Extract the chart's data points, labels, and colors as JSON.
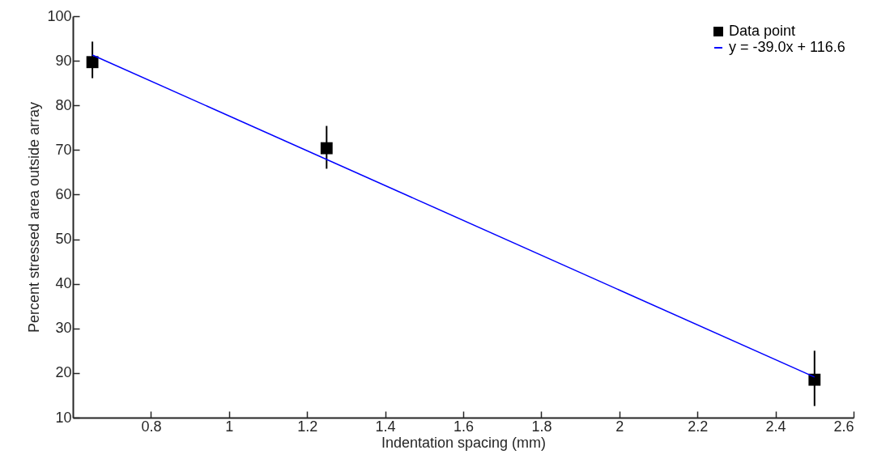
{
  "chart_data": {
    "type": "scatter",
    "xlabel": "Indentation spacing (mm)",
    "ylabel": "Percent stressed area outside array",
    "series": [
      {
        "name": "Data point",
        "marker": "square",
        "color": "#000000",
        "x": [
          0.65,
          1.25,
          2.5
        ],
        "values": [
          89.7,
          70.4,
          18.5
        ],
        "errors": [
          [
            86.1,
            94.3
          ],
          [
            65.8,
            75.4
          ],
          [
            12.6,
            25.0
          ]
        ]
      },
      {
        "name": "y = -39.0x + 116.6",
        "type": "line",
        "color": "#0000ff",
        "x": [
          0.65,
          2.5
        ],
        "values": [
          91.3,
          19.1
        ]
      }
    ],
    "xlim": [
      0.6,
      2.6
    ],
    "xticks": [
      0.8,
      1,
      1.2,
      1.4,
      1.6,
      1.8,
      2,
      2.2,
      2.4,
      2.6
    ],
    "ylim": [
      10,
      100
    ],
    "yticks": [
      10,
      20,
      30,
      40,
      50,
      60,
      70,
      80,
      90,
      100
    ],
    "legend": "top right"
  }
}
